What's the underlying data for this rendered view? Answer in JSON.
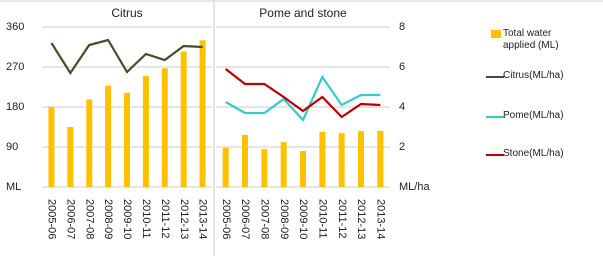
{
  "chart_data": [
    {
      "type": "bar",
      "title": "Citrus",
      "categories": [
        "2005-06",
        "2006-07",
        "2007-08",
        "2008-09",
        "2009-10",
        "2010-11",
        "2011-12",
        "2012-13",
        "2013-14"
      ],
      "ylim": [
        0,
        360
      ],
      "yticks": [
        {
          "value": 0,
          "label": "ML"
        },
        90,
        180,
        270,
        360
      ],
      "y2lim": [
        0,
        8
      ],
      "grid": true,
      "series": [
        {
          "name": "Total water applied (ML)",
          "color": "#FFC000",
          "values": [
            180,
            135,
            197,
            228,
            212,
            250,
            267,
            305,
            330
          ]
        },
        {
          "name": "Citrus(ML/ha)",
          "color": "#4B4A2A",
          "axis": "y2",
          "values": [
            7.2,
            5.7,
            7.1,
            7.35,
            5.75,
            6.65,
            6.35,
            7.05,
            7.0
          ]
        }
      ]
    },
    {
      "type": "bar",
      "title": "Pome and stone",
      "categories": [
        "2005-06",
        "2006-07",
        "2007-08",
        "2008-09",
        "2009-10",
        "2010-11",
        "2011-12",
        "2012-13",
        "2013-14"
      ],
      "ylim": [
        0,
        360
      ],
      "y2lim": [
        0,
        8
      ],
      "y2ticks": [
        {
          "value": 0,
          "label": "ML/ha"
        },
        2,
        4,
        6,
        8
      ],
      "grid": true,
      "series": [
        {
          "color": "#FFC000",
          "values": [
            88,
            117,
            85,
            101,
            81,
            124,
            121,
            126,
            126
          ]
        },
        {
          "name": "Pome(ML/ha)",
          "color": "#33CCCC",
          "axis": "y2",
          "values": [
            4.25,
            3.7,
            3.7,
            4.4,
            3.35,
            5.5,
            4.1,
            4.6,
            4.6
          ]
        },
        {
          "name": "Stone(ML/ha)",
          "color": "#C00000",
          "axis": "y2",
          "values": [
            5.9,
            5.15,
            5.15,
            4.5,
            3.8,
            4.5,
            3.5,
            4.15,
            4.1
          ]
        }
      ]
    }
  ]
}
